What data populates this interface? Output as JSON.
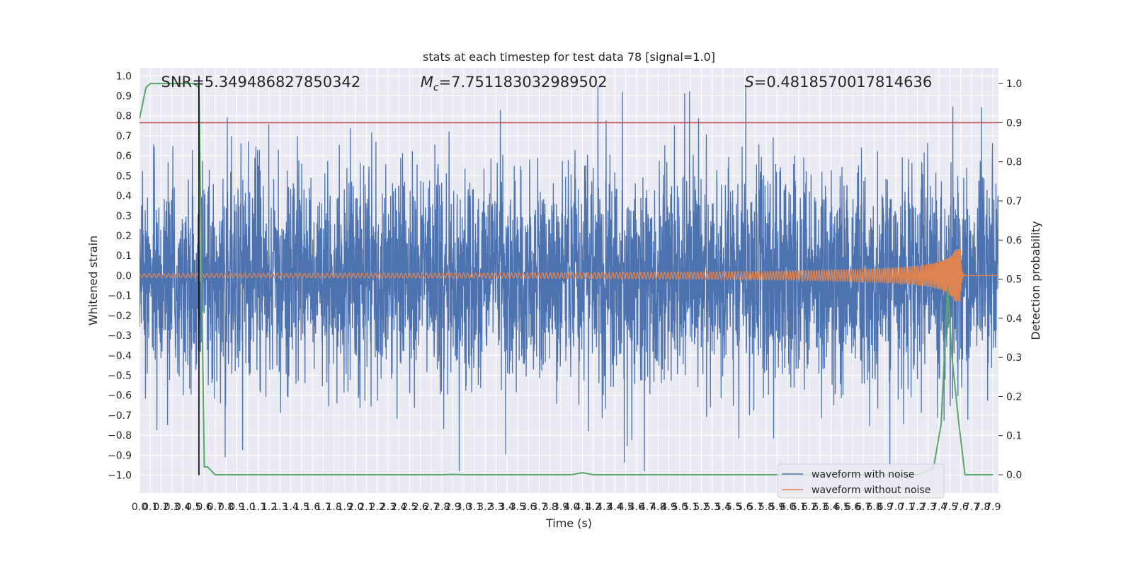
{
  "chart_data": {
    "type": "line",
    "title": "stats at each timestep for test data 78 [signal=1.0]",
    "xlabel": "Time (s)",
    "ylabel": "Whitened strain",
    "y2label": "Detection probability",
    "xlim": [
      0.0,
      7.95
    ],
    "ylim": [
      -1.09,
      1.04
    ],
    "y2lim": [
      -0.047,
      1.04
    ],
    "x_ticks": [
      0.0,
      0.1,
      0.2,
      0.3,
      0.4,
      0.5,
      0.6,
      0.7,
      0.8,
      0.9,
      1.0,
      1.1,
      1.2,
      1.3,
      1.4,
      1.5,
      1.6,
      1.7,
      1.8,
      1.9,
      2.0,
      2.1,
      2.2,
      2.3,
      2.4,
      2.5,
      2.6,
      2.7,
      2.8,
      2.9,
      3.0,
      3.1,
      3.2,
      3.3,
      3.4,
      3.5,
      3.6,
      3.7,
      3.8,
      3.9,
      4.0,
      4.1,
      4.2,
      4.3,
      4.4,
      4.5,
      4.6,
      4.7,
      4.8,
      4.9,
      5.0,
      5.1,
      5.2,
      5.3,
      5.4,
      5.5,
      5.6,
      5.7,
      5.8,
      5.9,
      6.0,
      6.1,
      6.2,
      6.3,
      6.4,
      6.5,
      6.6,
      6.7,
      6.8,
      6.9,
      7.0,
      7.1,
      7.2,
      7.3,
      7.4,
      7.5,
      7.6,
      7.7,
      7.8,
      7.9
    ],
    "y_ticks": [
      -1.0,
      -0.9,
      -0.8,
      -0.7,
      -0.6,
      -0.5,
      -0.4,
      -0.3,
      -0.2,
      -0.1,
      0.0,
      0.1,
      0.2,
      0.3,
      0.4,
      0.5,
      0.6,
      0.7,
      0.8,
      0.9,
      1.0
    ],
    "y2_ticks": [
      0.0,
      0.1,
      0.2,
      0.3,
      0.4,
      0.5,
      0.6,
      0.7,
      0.8,
      0.9,
      1.0
    ],
    "annotations": [
      {
        "id": "snr",
        "text": "SNR=5.349486827850342",
        "x": 0.2,
        "y": 0.97
      },
      {
        "id": "mc",
        "text": "M",
        "sub": "c",
        "rest": "=7.751183032989502",
        "x": 2.6,
        "y": 0.97
      },
      {
        "id": "s",
        "text": "S",
        "rest": "=0.4818570017814636",
        "x": 5.6,
        "y": 0.97
      }
    ],
    "threshold_y2": 0.9,
    "marker_x": 0.55,
    "series": [
      {
        "name": "waveform with noise",
        "color": "#4c72b0",
        "axis": "left",
        "kind": "noise",
        "std": 0.26,
        "n": 4200,
        "x_range": [
          0.0,
          7.95
        ]
      },
      {
        "name": "waveform without noise",
        "color": "#dd8452",
        "axis": "left",
        "kind": "chirp",
        "x_range": [
          0.0,
          7.95
        ],
        "merger_x": 7.6,
        "amp_start": 0.01,
        "amp_peak": 0.135
      },
      {
        "name": "",
        "color": "#55a868",
        "axis": "right",
        "kind": "line",
        "x": [
          0.0,
          0.06,
          0.1,
          0.2,
          0.3,
          0.4,
          0.5,
          0.55,
          0.6,
          0.63,
          0.7,
          1.0,
          2.0,
          2.8,
          2.9,
          3.0,
          4.0,
          4.1,
          4.2,
          4.3,
          5.0,
          6.0,
          7.0,
          7.2,
          7.3,
          7.35,
          7.42,
          7.48,
          7.52,
          7.58,
          7.64,
          7.7,
          7.8,
          7.9
        ],
        "y": [
          0.91,
          0.99,
          1.0,
          1.0,
          1.0,
          1.0,
          1.0,
          0.99,
          0.02,
          0.02,
          0.0,
          0.0,
          0.0,
          0.0,
          0.001,
          0.0,
          0.0,
          0.005,
          0.0,
          0.0,
          0.0,
          0.0,
          0.0,
          0.0,
          0.01,
          0.02,
          0.13,
          0.48,
          0.3,
          0.14,
          0.0,
          0.0,
          0.0,
          0.0
        ]
      }
    ],
    "legend": {
      "placement": "lower-right",
      "entries": [
        "waveform with noise",
        "waveform without noise"
      ]
    },
    "grid": true,
    "colors": {
      "background": "#eaeaf2",
      "grid": "#ffffff",
      "threshold": "#c44e52",
      "marker": "#000000"
    }
  }
}
